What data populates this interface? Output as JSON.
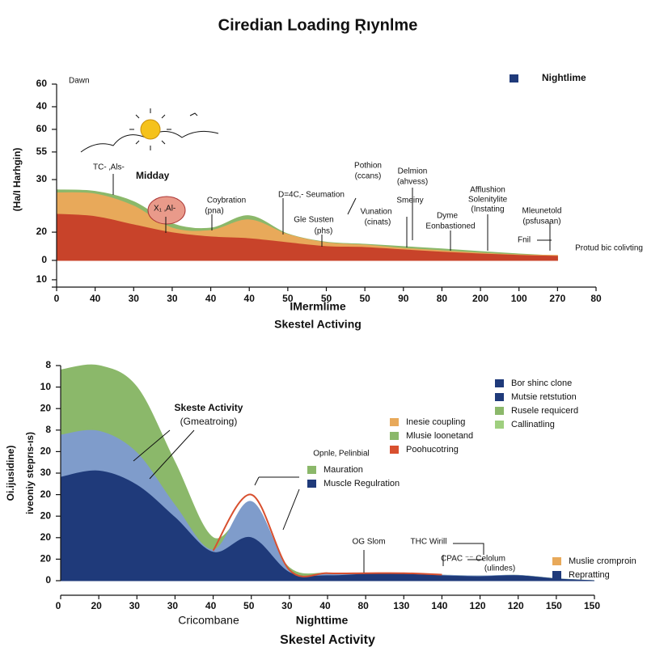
{
  "chart_data": [
    {
      "type": "area",
      "title": "Ciredian Loading Ŗıynlme",
      "x_label": "IMermlime",
      "x_label_2": "Skestel Activing",
      "y_label": "(Ha/I Harhgin)",
      "categories": [
        "0",
        "40",
        "30",
        "30",
        "40",
        "40",
        "50",
        "50",
        "50",
        "90",
        "80",
        "200",
        "100",
        "270",
        "80"
      ],
      "ylim": [
        -9.1,
        60
      ],
      "yticks": [
        60,
        {
          "value": 52.3,
          "label": "40"
        },
        {
          "value": 44.6,
          "label": "60"
        },
        {
          "value": 36.9,
          "label": "55"
        },
        {
          "value": 27.5,
          "label": "30"
        },
        {
          "value": 9.6,
          "label": "20"
        },
        0,
        {
          "value": -6.6,
          "label": "10"
        }
      ],
      "series": [
        {
          "color": "#8bb86a",
          "values": [
            24,
            23.5,
            20,
            12.5,
            11,
            15.2,
            9,
            6.2,
            5.5,
            4.7,
            3.9,
            3,
            2.2,
            1.5,
            null
          ]
        },
        {
          "color": "#e8a95a",
          "values": [
            23,
            22.6,
            18.5,
            11,
            10.2,
            13.8,
            8.8,
            6,
            5.2,
            4.1,
            3.3,
            2.5,
            1.9,
            1.7,
            null
          ]
        },
        {
          "color": "#c8432a",
          "values": [
            15.7,
            14.9,
            12.1,
            9.4,
            8,
            7.4,
            6,
            4.7,
            4.4,
            3.6,
            2.8,
            2.2,
            1.7,
            1.4,
            null
          ]
        }
      ],
      "legends": [
        [
          {
            "name": "Nightlime",
            "color": "#1f3a7a"
          }
        ]
      ],
      "annotations": [
        "Dawn",
        "TC- ‚Als-",
        "Midday",
        "X₁ ‚Al-",
        "Coybration",
        "(pna)",
        "D=4C‚- Seumation",
        "Gle Susten",
        "(phs)",
        "Pothion",
        "(ccans)",
        "Vunation",
        "(cinats)",
        "Delmion",
        "(ahvess)",
        "Smeiny",
        "Dyme",
        "Eonbastioned",
        "Afflushion",
        "Solenitylite",
        "(Instating",
        "Mleunetold",
        "(psfusaan)",
        "Fnil",
        "Protud bic colivting"
      ]
    },
    {
      "type": "area",
      "x_label": "Cricombane",
      "x_label_2": "Nighttime",
      "x_label_3": "Skestel Activity",
      "y_label": "Oi.ijusidine)",
      "y_label_2": "iveoniy steprıs-ıs)",
      "categories": [
        "0",
        "20",
        "30",
        "30",
        "40",
        "50",
        "30",
        "40",
        "80",
        "130",
        "140",
        "120",
        "120",
        "150",
        "150"
      ],
      "ylim": [
        0,
        100
      ],
      "yticks": [
        {
          "value": 100,
          "label": "8"
        },
        {
          "value": 90,
          "label": "10"
        },
        {
          "value": 80,
          "label": "20"
        },
        {
          "value": 70,
          "label": "8"
        },
        {
          "value": 60,
          "label": "20"
        },
        {
          "value": 50,
          "label": "30"
        },
        {
          "value": 40,
          "label": "20"
        },
        {
          "value": 30,
          "label": "20"
        },
        20,
        {
          "value": 10,
          "label": "20"
        },
        0
      ],
      "series": [
        {
          "color": "#8bb86a",
          "values": [
            98,
            100,
            90,
            55,
            20,
            32,
            6,
            3.5,
            3.2,
            3.2,
            2.6,
            2.2,
            2.5,
            1,
            0
          ]
        },
        {
          "color": "#7f9ccb",
          "values": [
            67.7,
            69.5,
            59.4,
            35,
            14.3,
            36.8,
            4.9,
            3,
            3.2,
            3.2,
            2.6,
            2.2,
            2.5,
            0.9,
            0
          ]
        },
        {
          "color": "#1f3a7a",
          "values": [
            48.1,
            51,
            44.4,
            29.3,
            13.2,
            20,
            3.8,
            2.3,
            3,
            3,
            2.3,
            1.9,
            2.3,
            0.8,
            0
          ]
        },
        {
          "color": "#d8502f",
          "line": true,
          "values": [
            null,
            null,
            null,
            null,
            14,
            40,
            5,
            3.5,
            3.5,
            3.5,
            2.8,
            null,
            null,
            null,
            null
          ]
        }
      ],
      "legends": [
        [
          {
            "name": "Bor shinc clone",
            "color": "#1f3a7a"
          },
          {
            "name": "Mutsie retstution",
            "color": "#1f3a7a"
          },
          {
            "name": "Rusele requicerd",
            "color": "#8bb86a"
          },
          {
            "name": "Callinatling",
            "color": "#9fcf7f"
          }
        ],
        [
          {
            "name": "Inesie coupling",
            "color": "#e8a95a"
          },
          {
            "name": "Mlusie loonetand",
            "color": "#8bb86a"
          },
          {
            "name": "Poohucotring",
            "color": "#d8502f"
          }
        ],
        [
          {
            "name": "Mauration",
            "color": "#8bb86a"
          },
          {
            "name": "Muscle Regulration",
            "color": "#1f3a7a"
          }
        ],
        [
          {
            "name": "Muslie cromproin",
            "color": "#e8a95a"
          },
          {
            "name": "Repratting",
            "color": "#1f3a7a"
          }
        ]
      ],
      "annotations": [
        "Skeste Activity",
        "(Gmeatroing)",
        "Opnle‚ Pelinbial",
        "OG Slom",
        "THC Wirill",
        "CPAC ⁻⁻ Celolum",
        "(ulindes)"
      ]
    }
  ]
}
